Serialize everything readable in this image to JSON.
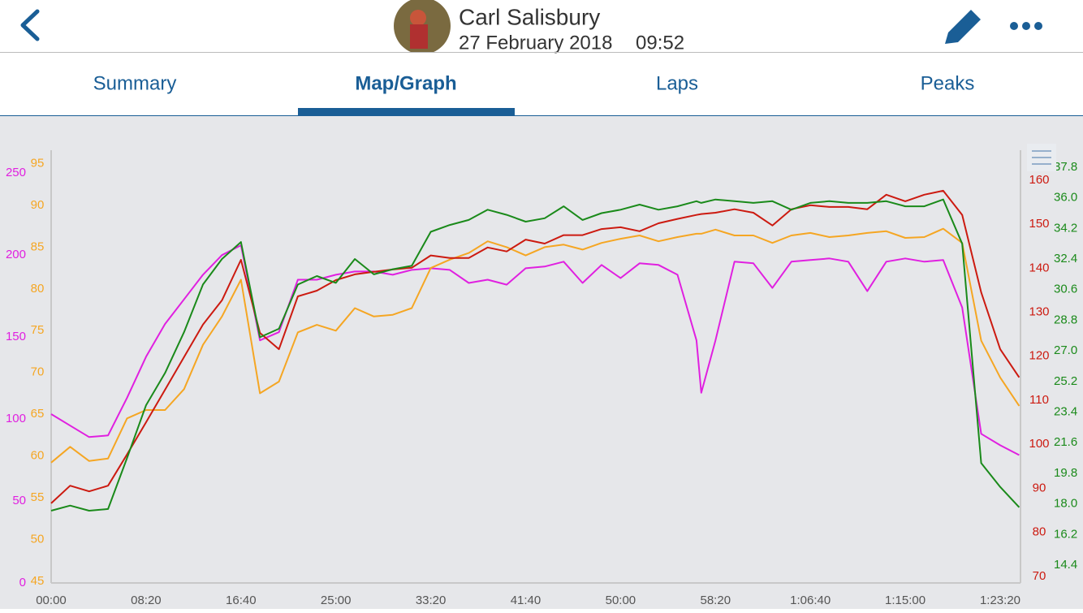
{
  "header": {
    "name": "Carl Salisbury",
    "date": "27 February 2018",
    "time": "09:52"
  },
  "tabs": [
    "Summary",
    "Map/Graph",
    "Laps",
    "Peaks"
  ],
  "chart_data": {
    "type": "line",
    "x": [
      0,
      100,
      200,
      300,
      400,
      500,
      600,
      700,
      800,
      900,
      1000,
      1100,
      1200,
      1300,
      1400,
      1500,
      1600,
      1700,
      1800,
      1900,
      2000,
      2100,
      2200,
      2300,
      2400,
      2500,
      2600,
      2700,
      2800,
      2900,
      3000,
      3100,
      3200,
      3300,
      3400,
      3425,
      3500,
      3600,
      3700,
      3800,
      3900,
      4000,
      4100,
      4200,
      4300,
      4400,
      4500,
      4600,
      4700,
      4800,
      4900,
      5000,
      5100
    ],
    "xlim": [
      0,
      5107
    ],
    "xticks": [
      {
        "value": 0,
        "label": "00:00"
      },
      {
        "value": 500,
        "label": "08:20"
      },
      {
        "value": 1000,
        "label": "16:40"
      },
      {
        "value": 1500,
        "label": "25:00"
      },
      {
        "value": 2000,
        "label": "33:20"
      },
      {
        "value": 2500,
        "label": "41:40"
      },
      {
        "value": 3000,
        "label": "50:00"
      },
      {
        "value": 3500,
        "label": "58:20"
      },
      {
        "value": 4000,
        "label": "1:06:40"
      },
      {
        "value": 4500,
        "label": "1:15:00"
      },
      {
        "value": 5000,
        "label": "1:23:20"
      }
    ],
    "series": [
      {
        "color": "#e020e0",
        "side": "left",
        "ylim": [
          0,
          264
        ],
        "yticks": [
          0,
          50,
          100,
          150,
          200,
          250
        ],
        "values": [
          103,
          96,
          89,
          90,
          113,
          138,
          158,
          173,
          188,
          200,
          206,
          148,
          153,
          185,
          185,
          188,
          190,
          190,
          188,
          191,
          192,
          191,
          183,
          185,
          182,
          192,
          193,
          196,
          183,
          194,
          186,
          195,
          194,
          188,
          148,
          116,
          148,
          196,
          195,
          180,
          196,
          197,
          198,
          196,
          178,
          196,
          198,
          196,
          197,
          168,
          91,
          84,
          78
        ]
      },
      {
        "color": "#f5a623",
        "side": "left",
        "ylim": [
          44.8,
          96.6
        ],
        "yticks": [
          45,
          50,
          55,
          60,
          65,
          70,
          75,
          80,
          85,
          90,
          95
        ],
        "values": [
          59.2,
          61.1,
          59.4,
          59.7,
          64.5,
          65.5,
          65.5,
          68,
          73.3,
          76.7,
          81.1,
          67.5,
          68.9,
          74.8,
          75.7,
          75,
          77.7,
          76.7,
          76.9,
          77.7,
          82.5,
          83.5,
          84.3,
          85.7,
          85,
          84,
          85,
          85.3,
          84.7,
          85.5,
          86,
          86.4,
          85.7,
          86.2,
          86.6,
          86.6,
          87.1,
          86.4,
          86.4,
          85.5,
          86.4,
          86.7,
          86.2,
          86.4,
          86.7,
          86.9,
          86.1,
          86.2,
          87.2,
          85.5,
          73.8,
          69.4,
          66
        ]
      },
      {
        "color": "#cc1a10",
        "side": "right",
        "ylim": [
          68.5,
          166.8
        ],
        "yticks": [
          70,
          80,
          90,
          100,
          110,
          120,
          130,
          140,
          150,
          160
        ],
        "values": [
          86.6,
          90.6,
          89.3,
          90.6,
          97.7,
          105,
          112.4,
          119.8,
          127.2,
          132.7,
          141.9,
          125.3,
          121.6,
          133.6,
          134.9,
          137.3,
          138.6,
          139.2,
          139.7,
          140.1,
          142.9,
          142.3,
          142.3,
          144.7,
          143.8,
          146.5,
          145.6,
          147.5,
          147.5,
          148.9,
          149.3,
          148.4,
          150.2,
          151.2,
          152.1,
          152.3,
          152.6,
          153.4,
          152.6,
          149.7,
          153.4,
          154.3,
          153.9,
          153.9,
          153.4,
          156.7,
          155.2,
          156.7,
          157.6,
          152.1,
          134.5,
          121.6,
          115.2
        ]
      },
      {
        "color": "#1a8a1a",
        "side": "right",
        "ylim": [
          13.35,
          38.8
        ],
        "yticks": [
          14.4,
          16.2,
          {
            "value": 18,
            "label": "18.0"
          },
          19.8,
          21.6,
          23.4,
          25.2,
          {
            "value": 27,
            "label": "27.0"
          },
          28.8,
          30.6,
          32.4,
          34.2,
          {
            "value": 36,
            "label": "36.0"
          },
          37.8
        ],
        "values": [
          17.6,
          17.9,
          17.6,
          17.7,
          20.7,
          23.8,
          25.7,
          28.1,
          30.9,
          32.4,
          33.4,
          27.8,
          28.3,
          30.9,
          31.4,
          31,
          32.4,
          31.5,
          31.8,
          32,
          34,
          34.4,
          34.7,
          35.3,
          35,
          34.6,
          34.8,
          35.5,
          34.7,
          35.1,
          35.3,
          35.6,
          35.3,
          35.5,
          35.8,
          35.7,
          35.9,
          35.8,
          35.7,
          35.8,
          35.3,
          35.7,
          35.8,
          35.7,
          35.7,
          35.8,
          35.5,
          35.5,
          35.9,
          33.3,
          20.4,
          19,
          17.8
        ]
      }
    ]
  }
}
